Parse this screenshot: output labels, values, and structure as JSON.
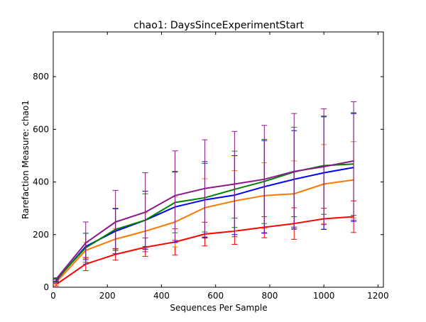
{
  "chart_data": {
    "type": "line",
    "title": "chao1: DaysSinceExperimentStart",
    "xlabel": "Sequences Per Sample",
    "ylabel": "Rarefaction Measure: chao1",
    "xlim": [
      0,
      1220
    ],
    "ylim": [
      0,
      970
    ],
    "xticks": [
      0,
      200,
      400,
      600,
      800,
      1000,
      1200
    ],
    "yticks": [
      0,
      200,
      400,
      600,
      800
    ],
    "grid": false,
    "legend": "none",
    "x": [
      10,
      120,
      230,
      340,
      450,
      560,
      670,
      780,
      890,
      1000,
      1110
    ],
    "series": [
      {
        "color": "#ff0000",
        "values": [
          10,
          88,
          125,
          152,
          172,
          202,
          213,
          228,
          242,
          260,
          268
        ],
        "err": [
          5,
          25,
          22,
          35,
          50,
          45,
          50,
          40,
          60,
          40,
          60
        ]
      },
      {
        "color": "#ff7700",
        "values": [
          18,
          140,
          183,
          213,
          248,
          302,
          328,
          348,
          355,
          392,
          408
        ],
        "err": [
          6,
          30,
          40,
          70,
          95,
          110,
          115,
          125,
          125,
          150,
          145
        ]
      },
      {
        "color": "#0000ff",
        "values": [
          25,
          155,
          213,
          255,
          305,
          332,
          350,
          382,
          410,
          435,
          455
        ],
        "err": [
          6,
          50,
          85,
          110,
          135,
          145,
          150,
          175,
          185,
          215,
          205
        ]
      },
      {
        "color": "#008000",
        "values": [
          28,
          150,
          220,
          255,
          322,
          340,
          372,
          402,
          438,
          462,
          468
        ],
        "err": [
          6,
          55,
          80,
          100,
          115,
          130,
          145,
          160,
          170,
          185,
          195
        ]
      },
      {
        "color": "#8b1a89",
        "values": [
          30,
          168,
          248,
          285,
          348,
          375,
          392,
          410,
          440,
          458,
          480
        ],
        "err": [
          6,
          80,
          120,
          150,
          170,
          185,
          200,
          205,
          220,
          220,
          225
        ]
      }
    ]
  }
}
